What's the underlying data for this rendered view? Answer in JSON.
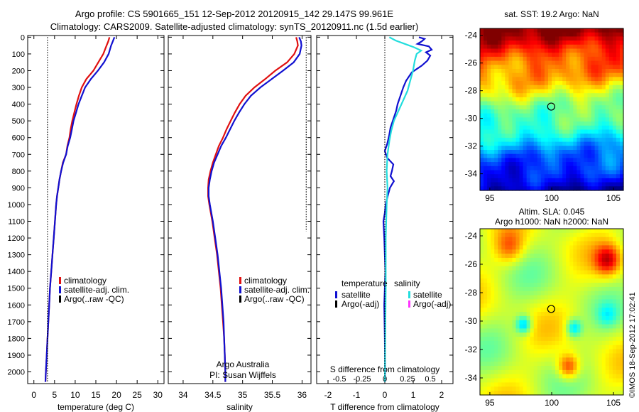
{
  "header": {
    "title_line1": "Argo profile: CS 5901665_151 12-Sep-2012 20120915_142 29.147S 99.961E",
    "title_line2": "Climatology: CARS2009. Satellite-adjusted climatology: synTS_20120911.nc (1.5d earlier)"
  },
  "colors": {
    "climatology": "#e01010",
    "satellite": "#1010d0",
    "argo": "#000000",
    "salinity_satellite": "#22dddd",
    "salinity_argo": "#ff33ff"
  },
  "depth_ticks": [
    0,
    100,
    200,
    300,
    400,
    500,
    600,
    700,
    800,
    900,
    1000,
    1100,
    1200,
    1300,
    1400,
    1500,
    1600,
    1700,
    1800,
    1900,
    2000
  ],
  "chart_data": [
    {
      "type": "line",
      "panel": "temperature",
      "xlabel": "temperature (deg C)",
      "ylabel": "",
      "xlim": [
        -1.5,
        31.5
      ],
      "ylim": [
        2070,
        -10
      ],
      "xticks": [
        0,
        5,
        10,
        15,
        20,
        25,
        30
      ],
      "legend": [
        "climatology",
        "satellite-adj. clim.",
        "Argo(..raw -QC)"
      ],
      "legend_placement": "lower-center",
      "series": [
        {
          "name": "climatology",
          "color": "#e01010",
          "points": [
            [
              18.3,
              0
            ],
            [
              18.0,
              25
            ],
            [
              17.6,
              50
            ],
            [
              16.8,
              100
            ],
            [
              15.6,
              150
            ],
            [
              14.4,
              200
            ],
            [
              12.7,
              250
            ],
            [
              11.6,
              300
            ],
            [
              10.9,
              350
            ],
            [
              10.3,
              400
            ],
            [
              9.8,
              450
            ],
            [
              9.3,
              500
            ],
            [
              8.9,
              550
            ],
            [
              8.6,
              600
            ],
            [
              8.1,
              650
            ],
            [
              7.8,
              700
            ],
            [
              7.0,
              750
            ],
            [
              6.6,
              800
            ],
            [
              6.2,
              850
            ],
            [
              5.9,
              900
            ],
            [
              5.6,
              950
            ],
            [
              5.4,
              1000
            ],
            [
              5.1,
              1100
            ],
            [
              4.8,
              1200
            ],
            [
              4.5,
              1300
            ],
            [
              4.2,
              1400
            ],
            [
              3.9,
              1500
            ],
            [
              3.7,
              1600
            ],
            [
              3.5,
              1700
            ],
            [
              3.3,
              1800
            ],
            [
              3.1,
              1900
            ],
            [
              2.9,
              2000
            ],
            [
              2.8,
              2060
            ]
          ]
        },
        {
          "name": "satellite-adj. clim.",
          "color": "#1010d0",
          "points": [
            [
              19.5,
              0
            ],
            [
              19.1,
              25
            ],
            [
              18.7,
              50
            ],
            [
              18.1,
              100
            ],
            [
              17.0,
              150
            ],
            [
              15.5,
              200
            ],
            [
              13.8,
              250
            ],
            [
              12.4,
              300
            ],
            [
              11.6,
              350
            ],
            [
              10.8,
              400
            ],
            [
              10.2,
              450
            ],
            [
              9.6,
              500
            ],
            [
              9.2,
              550
            ],
            [
              8.8,
              600
            ],
            [
              8.2,
              650
            ],
            [
              7.8,
              700
            ],
            [
              7.1,
              750
            ],
            [
              6.6,
              800
            ],
            [
              6.2,
              850
            ],
            [
              5.9,
              900
            ],
            [
              5.6,
              950
            ],
            [
              5.4,
              1000
            ],
            [
              5.1,
              1100
            ],
            [
              4.8,
              1200
            ],
            [
              4.5,
              1300
            ],
            [
              4.2,
              1400
            ],
            [
              3.9,
              1500
            ],
            [
              3.7,
              1600
            ],
            [
              3.5,
              1700
            ],
            [
              3.3,
              1800
            ],
            [
              3.1,
              1900
            ],
            [
              2.9,
              2000
            ],
            [
              2.8,
              2060
            ]
          ]
        },
        {
          "name": "Argo(..raw -QC)",
          "color": "#000000",
          "dotted": true,
          "points": [
            [
              3.3,
              0
            ],
            [
              3.3,
              2060
            ]
          ]
        }
      ]
    },
    {
      "type": "line",
      "panel": "salinity",
      "xlabel": "salinity",
      "ylabel": "",
      "xlim": [
        33.75,
        36.15
      ],
      "ylim": [
        2070,
        -10
      ],
      "xticks": [
        34,
        34.5,
        35,
        35.5,
        36
      ],
      "legend": [
        "climatology",
        "satellite-adj. clim.",
        "Argo(..raw -QC)"
      ],
      "legend_placement": "lower-center",
      "series": [
        {
          "name": "climatology",
          "color": "#e01010",
          "points": [
            [
              35.9,
              0
            ],
            [
              35.92,
              25
            ],
            [
              35.93,
              50
            ],
            [
              35.87,
              100
            ],
            [
              35.75,
              150
            ],
            [
              35.55,
              200
            ],
            [
              35.38,
              250
            ],
            [
              35.2,
              300
            ],
            [
              35.05,
              350
            ],
            [
              34.95,
              400
            ],
            [
              34.87,
              450
            ],
            [
              34.8,
              500
            ],
            [
              34.73,
              550
            ],
            [
              34.67,
              600
            ],
            [
              34.6,
              650
            ],
            [
              34.55,
              700
            ],
            [
              34.5,
              750
            ],
            [
              34.46,
              800
            ],
            [
              34.43,
              850
            ],
            [
              34.42,
              900
            ],
            [
              34.42,
              950
            ],
            [
              34.44,
              1000
            ],
            [
              34.49,
              1100
            ],
            [
              34.53,
              1200
            ],
            [
              34.57,
              1300
            ],
            [
              34.6,
              1400
            ],
            [
              34.63,
              1500
            ],
            [
              34.65,
              1600
            ],
            [
              34.67,
              1700
            ],
            [
              34.69,
              1800
            ],
            [
              34.7,
              1900
            ],
            [
              34.71,
              2000
            ],
            [
              34.71,
              2060
            ]
          ]
        },
        {
          "name": "satellite-adj. clim.",
          "color": "#1010d0",
          "points": [
            [
              35.95,
              0
            ],
            [
              35.98,
              25
            ],
            [
              35.99,
              50
            ],
            [
              35.96,
              100
            ],
            [
              35.86,
              150
            ],
            [
              35.68,
              200
            ],
            [
              35.49,
              250
            ],
            [
              35.3,
              300
            ],
            [
              35.14,
              350
            ],
            [
              35.03,
              400
            ],
            [
              34.94,
              450
            ],
            [
              34.86,
              500
            ],
            [
              34.79,
              550
            ],
            [
              34.72,
              600
            ],
            [
              34.64,
              650
            ],
            [
              34.58,
              700
            ],
            [
              34.52,
              750
            ],
            [
              34.48,
              800
            ],
            [
              34.45,
              850
            ],
            [
              34.43,
              900
            ],
            [
              34.43,
              950
            ],
            [
              34.45,
              1000
            ],
            [
              34.5,
              1100
            ],
            [
              34.54,
              1200
            ],
            [
              34.58,
              1300
            ],
            [
              34.61,
              1400
            ],
            [
              34.64,
              1500
            ],
            [
              34.66,
              1600
            ],
            [
              34.68,
              1700
            ],
            [
              34.69,
              1800
            ],
            [
              34.7,
              1900
            ],
            [
              34.71,
              2000
            ],
            [
              34.71,
              2060
            ]
          ]
        },
        {
          "name": "Argo(..raw -QC)",
          "color": "#000000",
          "dotted": true,
          "points": [
            [
              36.07,
              0
            ],
            [
              36.07,
              1160
            ]
          ]
        }
      ]
    },
    {
      "type": "line",
      "panel": "difference",
      "xlabel": "T difference from climatology",
      "xlabel2": "S difference from climatology",
      "xlim": [
        -2.4,
        2.4
      ],
      "xticks": [
        -2,
        -1,
        0,
        1,
        2
      ],
      "xlim_s": [
        -0.75,
        0.75
      ],
      "xticks_s": [
        -0.5,
        -0.25,
        0,
        0.25,
        0.5
      ],
      "xtick_labels_s": [
        "-0.5",
        "-0.25",
        "0",
        "0.25",
        "0.5"
      ],
      "ylim": [
        2070,
        -10
      ],
      "legend": {
        "temperature_title": "temperature",
        "temperature_entries": [
          "satellite",
          "Argo(-adj)"
        ],
        "salinity_title": "salinity",
        "salinity_entries": [
          "satellite",
          "Argo(-adj)"
        ]
      },
      "legend_placement": "lower-center",
      "series": [
        {
          "name": "T satellite",
          "color": "#1010d0",
          "axis": "T",
          "points": [
            [
              1.2,
              0
            ],
            [
              1.4,
              10
            ],
            [
              1.3,
              25
            ],
            [
              1.15,
              40
            ],
            [
              1.55,
              55
            ],
            [
              1.65,
              75
            ],
            [
              1.45,
              90
            ],
            [
              1.6,
              110
            ],
            [
              1.5,
              140
            ],
            [
              1.3,
              170
            ],
            [
              0.95,
              210
            ],
            [
              0.75,
              260
            ],
            [
              0.65,
              300
            ],
            [
              0.55,
              350
            ],
            [
              0.45,
              400
            ],
            [
              0.4,
              440
            ],
            [
              0.3,
              490
            ],
            [
              0.2,
              540
            ],
            [
              0.15,
              590
            ],
            [
              0.08,
              640
            ],
            [
              0.0,
              680
            ],
            [
              0.08,
              720
            ],
            [
              0.3,
              760
            ],
            [
              0.25,
              800
            ],
            [
              0.2,
              830
            ],
            [
              0.32,
              860
            ],
            [
              0.18,
              900
            ],
            [
              0.1,
              950
            ],
            [
              0.03,
              1000
            ],
            [
              0.0,
              1050
            ],
            [
              -0.05,
              1100
            ],
            [
              -0.02,
              1200
            ],
            [
              0.0,
              1300
            ],
            [
              0.02,
              1400
            ],
            [
              0.0,
              1500
            ],
            [
              -0.02,
              1600
            ],
            [
              0.0,
              1800
            ],
            [
              0.01,
              2000
            ],
            [
              0.0,
              2060
            ]
          ]
        },
        {
          "name": "S satellite",
          "color": "#22dddd",
          "axis": "S",
          "points": [
            [
              0.05,
              0
            ],
            [
              0.12,
              20
            ],
            [
              0.22,
              40
            ],
            [
              0.32,
              60
            ],
            [
              0.4,
              80
            ],
            [
              0.35,
              100
            ],
            [
              0.33,
              140
            ],
            [
              0.31,
              200
            ],
            [
              0.28,
              260
            ],
            [
              0.25,
              320
            ],
            [
              0.2,
              380
            ],
            [
              0.15,
              440
            ],
            [
              0.1,
              500
            ],
            [
              0.07,
              560
            ],
            [
              0.05,
              620
            ],
            [
              0.03,
              700
            ],
            [
              0.02,
              800
            ],
            [
              0.03,
              900
            ],
            [
              0.02,
              1000
            ],
            [
              0.01,
              1200
            ],
            [
              0.01,
              1500
            ],
            [
              0.0,
              2060
            ]
          ]
        },
        {
          "name": "zero",
          "color": "#000000",
          "dotted": true,
          "axis": "T",
          "points": [
            [
              0,
              0
            ],
            [
              0,
              2060
            ]
          ]
        }
      ]
    }
  ],
  "maps": {
    "sst": {
      "title": "sat. SST: 19.2  Argo: NaN",
      "xticks": [
        95,
        100,
        105
      ],
      "yticks": [
        -24,
        -26,
        -28,
        -30,
        -32,
        -34
      ],
      "marker_lon": 99.961,
      "marker_lat": -29.147
    },
    "sla": {
      "title_line1": "Altim. SLA: 0.045",
      "title_line2": "Argo h1000: NaN h2000: NaN",
      "xticks": [
        95,
        100,
        105
      ],
      "yticks": [
        -24,
        -26,
        -28,
        -30,
        -32,
        -34
      ],
      "marker_lon": 99.961,
      "marker_lat": -29.147
    }
  },
  "annotations": {
    "credit_line1": "Argo Australia",
    "credit_line2": "PI: Susan Wijffels",
    "stamp": "©IMOS 18-Sep-2012 17:02:41"
  }
}
